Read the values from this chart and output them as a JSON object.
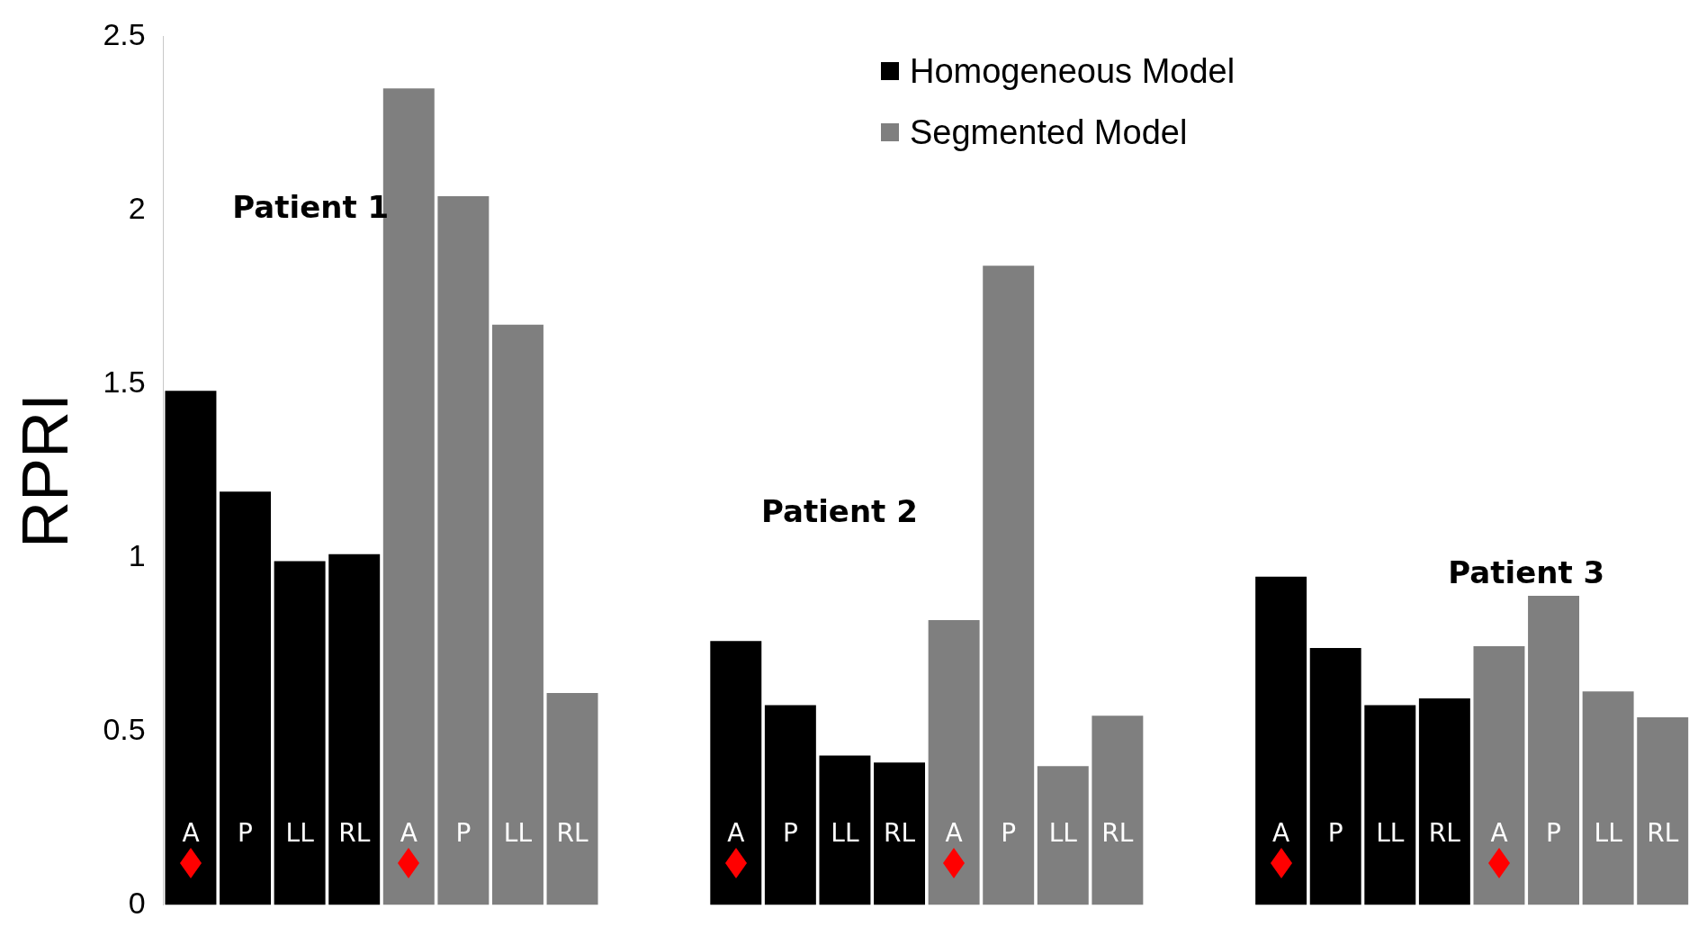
{
  "chart_data": {
    "type": "bar",
    "ylabel": "RPRI",
    "categories": [
      "A",
      "P",
      "LL",
      "RL",
      "A",
      "P",
      "LL",
      "RL",
      null,
      null,
      "A",
      "P",
      "LL",
      "RL",
      "A",
      "P",
      "LL",
      "RL",
      null,
      null,
      "A",
      "P",
      "LL",
      "RL",
      "A",
      "P",
      "LL",
      "RL"
    ],
    "series": [
      {
        "name": "Homogeneous Model",
        "color": "#000000",
        "values": [
          1.48,
          1.19,
          0.99,
          1.01,
          null,
          null,
          null,
          null,
          null,
          null,
          0.76,
          0.575,
          0.43,
          0.41,
          null,
          null,
          null,
          null,
          null,
          null,
          0.945,
          0.74,
          0.575,
          0.595,
          null,
          null,
          null,
          null
        ]
      },
      {
        "name": "Segmented Model",
        "color": "#7f7f7f",
        "values": [
          null,
          null,
          null,
          null,
          2.35,
          2.04,
          1.67,
          0.61,
          null,
          null,
          null,
          null,
          null,
          null,
          0.82,
          1.84,
          0.4,
          0.545,
          null,
          null,
          null,
          null,
          null,
          null,
          0.745,
          0.89,
          0.615,
          0.54
        ]
      }
    ],
    "ylim": [
      0,
      2.5
    ],
    "yticks": [
      0,
      0.5,
      1,
      1.5,
      2,
      2.5
    ],
    "grid": false,
    "legend": "top right",
    "annotations": [
      "Patient 1",
      "Patient 2",
      "Patient 3"
    ]
  }
}
